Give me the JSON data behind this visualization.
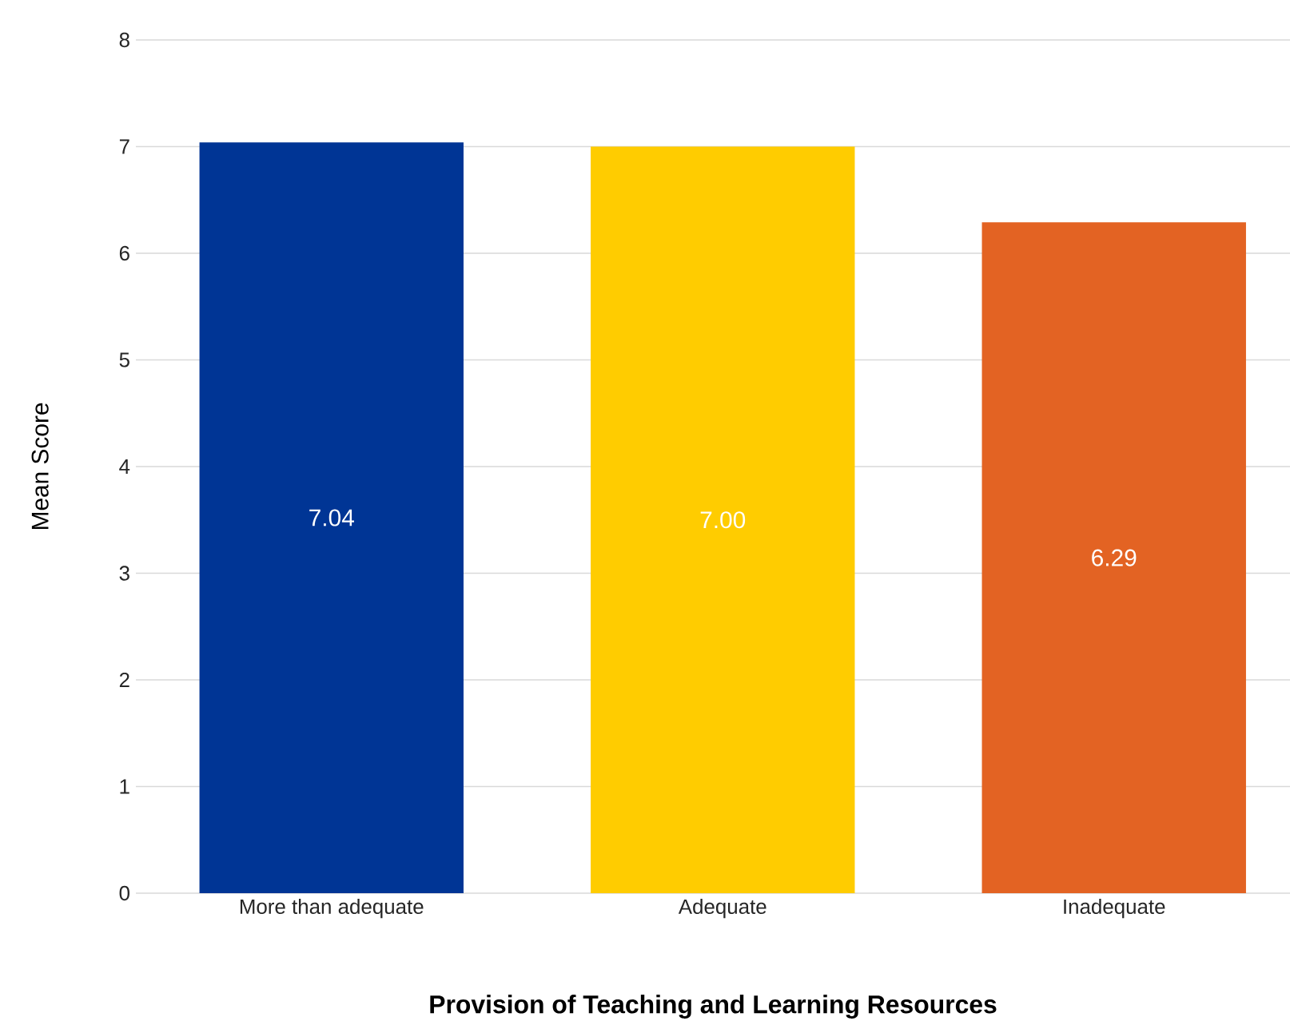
{
  "chart_data": {
    "type": "bar",
    "xlabel": "Provision of Teaching and Learning Resources",
    "ylabel": "Mean Score",
    "categories": [
      "More than adequate",
      "Adequate",
      "Inadequate"
    ],
    "values": [
      7.04,
      7.0,
      6.29
    ],
    "colors": [
      "#003595",
      "#ffcc00",
      "#e36323"
    ],
    "value_labels": [
      "7.04",
      "7.00",
      "6.29"
    ],
    "ylim": [
      0,
      8
    ],
    "yticks": [
      0,
      1,
      2,
      3,
      4,
      5,
      6,
      7,
      8
    ],
    "grid": "y"
  }
}
